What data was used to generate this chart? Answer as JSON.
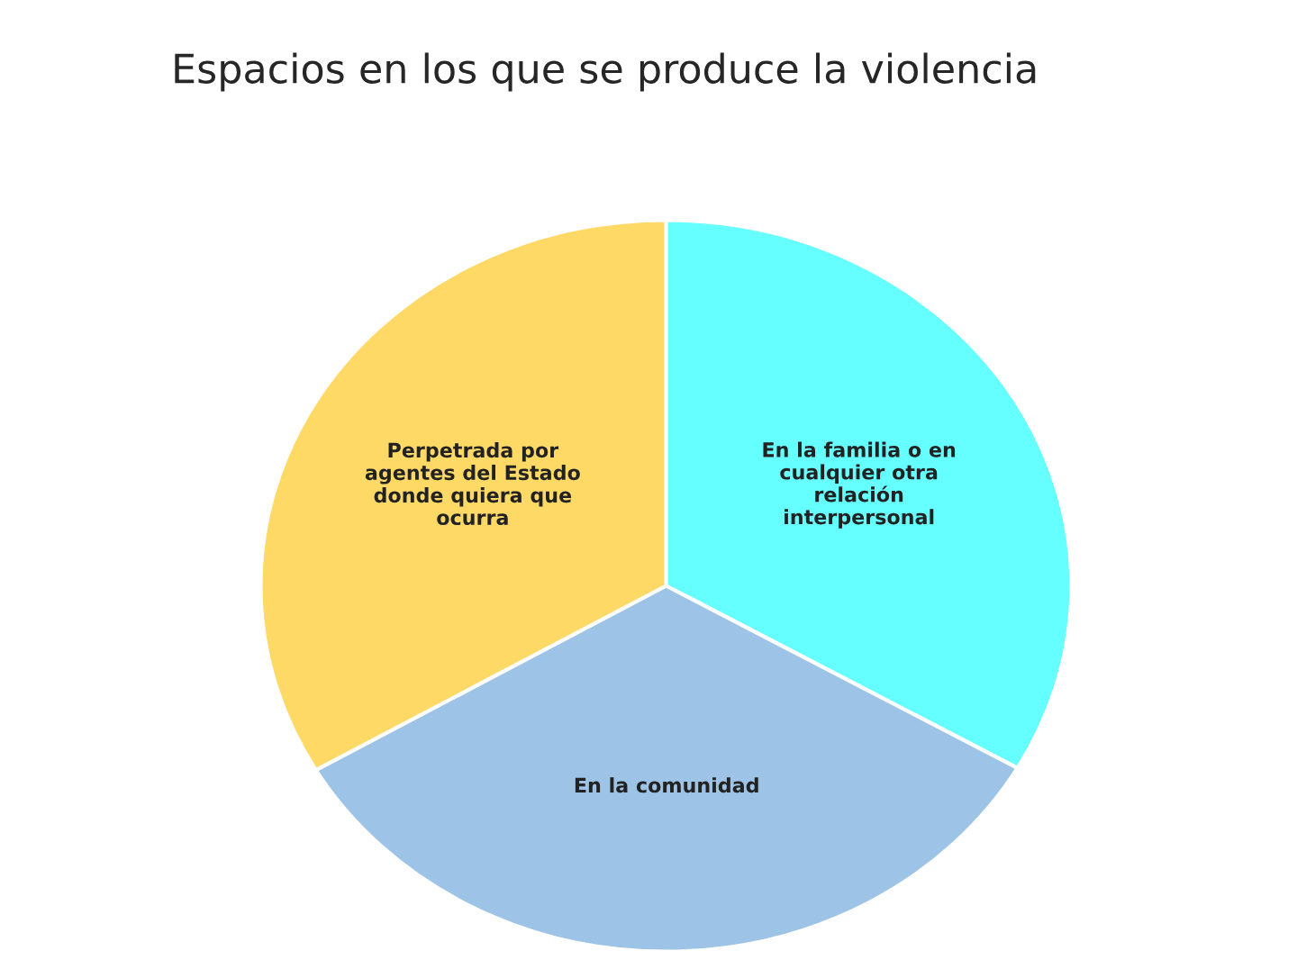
{
  "chart_data": {
    "type": "pie",
    "title": "Espacios en los que se produce la violencia",
    "categories": [
      "En la familia o en cualquier otra relación interpersonal",
      "En la comunidad",
      "Perpetrada por agentes del Estado donde quiera que ocurra"
    ],
    "values": [
      33.3,
      33.3,
      33.4
    ],
    "colors": [
      "#66ffff",
      "#9dc3e6",
      "#ffd966"
    ],
    "legend": false
  }
}
